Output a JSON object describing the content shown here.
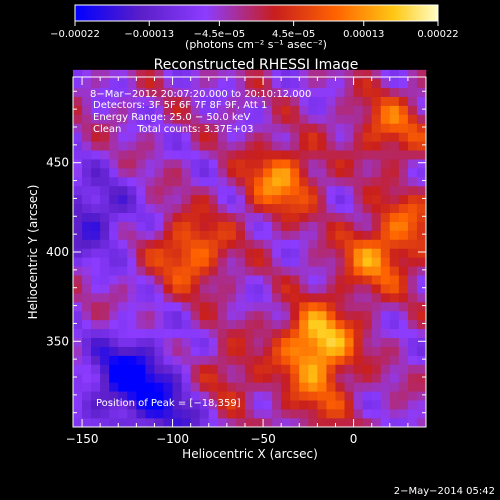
{
  "chart_data": {
    "type": "heatmap",
    "title": "Reconstructed RHESSI Image",
    "xlabel": "Heliocentric X (arcsec)",
    "ylabel": "Heliocentric Y (arcsec)",
    "xlim": [
      -155,
      40
    ],
    "ylim": [
      302,
      498
    ],
    "xticks": [
      -150,
      -100,
      -50,
      0
    ],
    "xtick_labels": [
      "−150",
      "−100",
      "−50",
      "0"
    ],
    "yticks": [
      350,
      400,
      450
    ],
    "ytick_labels": [
      "350",
      "400",
      "450"
    ],
    "colorbar": {
      "range": [
        -0.00022,
        0.00022
      ],
      "ticks": [
        -0.00022,
        -0.00013,
        -4.5e-05,
        4.5e-05,
        0.00013,
        0.00022
      ],
      "tick_labels": [
        "−0.00022",
        "−0.00013",
        "−4.5e−05",
        "4.5e−05",
        "0.00013",
        "0.00022"
      ],
      "unit_label": "(photons cm⁻² s⁻¹ asec⁻²)",
      "colors": [
        "#0000ff",
        "#5a1ec8",
        "#8c3cff",
        "#c81e1e",
        "#ff6400",
        "#ffc814",
        "#ffffc8"
      ]
    },
    "annotations": [
      "8−Mar−2012 20:07:20.000 to 20:10:12.000",
      "Detectors: 3F 5F 6F 7F 8F 9F, Att 1",
      "Energy Range: 25.0 − 50.0 keV",
      "Clean     Total counts: 3.37E+03"
    ],
    "peak": {
      "label": "Position of Peak = [−18,359]",
      "x": -18,
      "y": 359
    },
    "sources": [
      {
        "x": -20,
        "y": 350,
        "peak": 0.00022
      },
      {
        "x": -40,
        "y": 440,
        "peak": 0.00016
      },
      {
        "x": -90,
        "y": 400,
        "peak": 0.00015
      },
      {
        "x": 10,
        "y": 395,
        "peak": 0.00013
      },
      {
        "x": 20,
        "y": 470,
        "peak": 0.00012
      },
      {
        "x": 30,
        "y": 415,
        "peak": 0.0001
      },
      {
        "x": -70,
        "y": 330,
        "peak": 8e-05
      },
      {
        "x": -20,
        "y": 320,
        "peak": 9e-05
      }
    ],
    "negative_regions": [
      {
        "x": -125,
        "y": 330,
        "depth": -0.00018
      },
      {
        "x": -145,
        "y": 420,
        "depth": -0.00012
      },
      {
        "x": -100,
        "y": 310,
        "depth": -0.0001
      }
    ]
  },
  "timestamp": "2−May−2014 05:42"
}
